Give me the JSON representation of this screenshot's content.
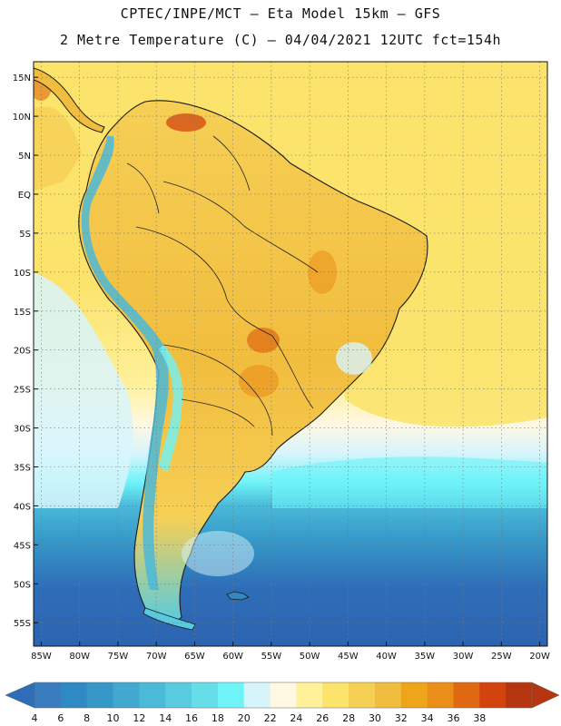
{
  "header": {
    "line1": "CPTEC/INPE/MCT –  Eta Model 15km – GFS",
    "line2": "2 Metre Temperature (C) – 04/04/2021 12UTC fct=154h"
  },
  "map": {
    "variable": "2 Metre Temperature",
    "unit": "C",
    "region": "South America",
    "lon_range": [
      -86,
      -19
    ],
    "lat_range": [
      -58,
      17
    ],
    "lat_ticks": [
      "15N",
      "10N",
      "5N",
      "EQ",
      "5S",
      "10S",
      "15S",
      "20S",
      "25S",
      "30S",
      "35S",
      "40S",
      "45S",
      "50S",
      "55S"
    ],
    "lon_ticks": [
      "85W",
      "80W",
      "75W",
      "70W",
      "65W",
      "60W",
      "55W",
      "50W",
      "45W",
      "40W",
      "35W",
      "30W",
      "25W",
      "20W"
    ]
  },
  "colorbar": {
    "labels": [
      "4",
      "6",
      "8",
      "10",
      "12",
      "14",
      "16",
      "18",
      "20",
      "22",
      "24",
      "26",
      "28",
      "30",
      "32",
      "34",
      "36",
      "38"
    ],
    "colors": [
      "#3a7cc0",
      "#2f89c4",
      "#3598c8",
      "#42a8cf",
      "#4bb9d8",
      "#58cbe0",
      "#66dde8",
      "#6ef3f8",
      "#d8f4fb",
      "#fff8e2",
      "#fff09a",
      "#fbe36c",
      "#f6cf55",
      "#f1bd3e",
      "#efa51a",
      "#eb8e18",
      "#e06812",
      "#d2430e",
      "#b5360e"
    ],
    "low_color": "#2f6db8",
    "high_color": "#b5360e"
  }
}
